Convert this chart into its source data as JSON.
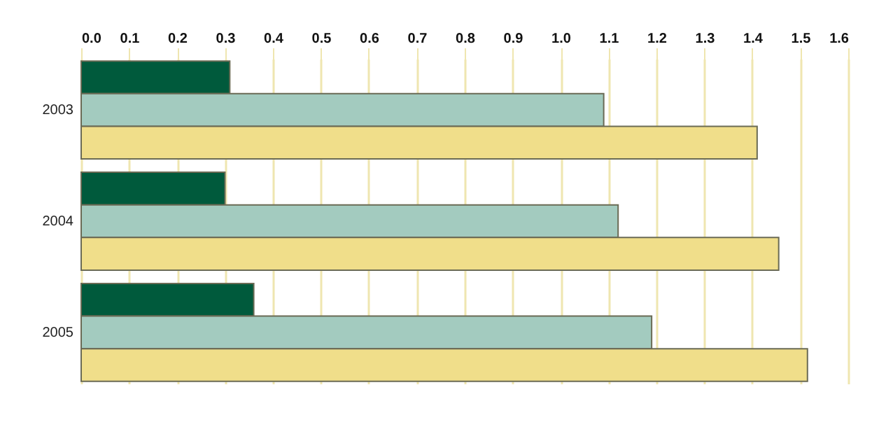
{
  "chart_data": {
    "type": "bar",
    "orientation": "horizontal",
    "categories": [
      "2003",
      "2004",
      "2005"
    ],
    "series": [
      {
        "color": "#005a3c",
        "values": [
          0.31,
          0.3,
          0.36
        ]
      },
      {
        "color": "#a3cbbf",
        "values": [
          1.09,
          1.12,
          1.19
        ]
      },
      {
        "color": "#f0de8a",
        "values": [
          1.41,
          1.455,
          1.515
        ]
      }
    ],
    "xlim": [
      0,
      1.6
    ],
    "xticks": [
      {
        "value": 0,
        "label": "0.0"
      },
      0.1,
      0.2,
      0.3,
      0.4,
      0.5,
      0.6,
      0.7,
      0.8,
      0.9,
      {
        "value": 1,
        "label": "1.0"
      },
      1.1,
      1.2,
      1.3,
      1.4,
      1.5,
      1.6
    ],
    "grid": "x",
    "legend": false
  }
}
